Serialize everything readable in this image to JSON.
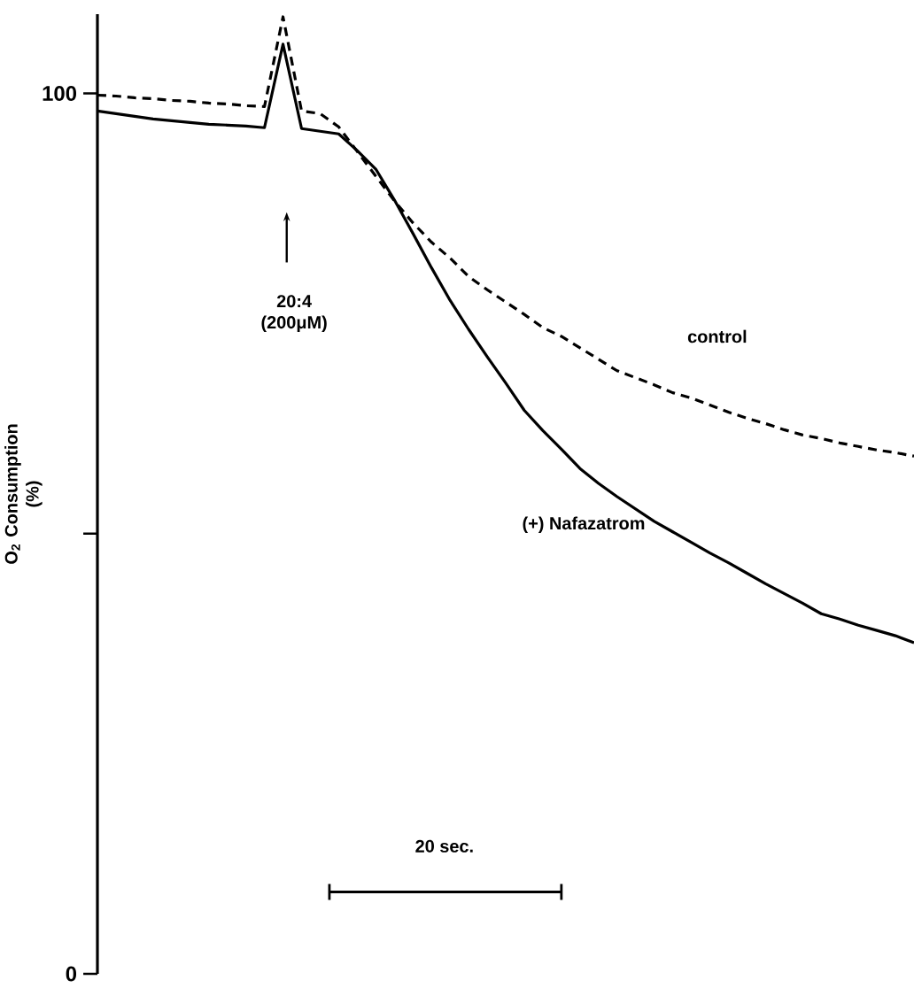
{
  "chart_data": {
    "type": "line",
    "ylabel": "O$_{2}$ Consumption (%)",
    "categories": [
      null,
      null,
      null,
      null,
      null,
      null,
      null,
      null,
      null,
      null,
      null,
      null,
      null,
      null,
      null,
      null,
      null,
      null,
      null,
      null,
      null,
      null,
      null,
      null,
      null,
      null,
      null,
      null,
      null,
      null,
      null,
      null,
      null,
      null,
      null,
      null,
      null,
      null,
      null,
      null,
      null,
      null,
      null,
      null,
      null
    ],
    "series": [
      {
        "name": "control",
        "color": "#000000",
        "line_style": "dashed",
        "values": [
          99.8,
          99.7,
          99.5,
          99.4,
          99.2,
          99.1,
          98.9,
          98.8,
          98.6,
          98.5,
          108.7,
          98.0,
          97.7,
          96.2,
          93.4,
          90.6,
          87.8,
          85.3,
          83.1,
          81.3,
          79.2,
          77.7,
          76.3,
          74.9,
          73.4,
          72.4,
          71.1,
          69.8,
          68.5,
          67.7,
          66.9,
          66.0,
          65.4,
          64.6,
          63.8,
          63.1,
          62.5,
          61.8,
          61.2,
          60.8,
          60.3,
          59.9,
          59.5,
          59.2,
          58.8
        ]
      },
      {
        "name": "(+) Nafazatrom",
        "color": "#000000",
        "line_style": "solid",
        "values": [
          98.0,
          97.7,
          97.4,
          97.1,
          96.9,
          96.7,
          96.5,
          96.4,
          96.3,
          96.1,
          105.6,
          96.0,
          95.7,
          95.4,
          93.5,
          91.4,
          87.9,
          84.1,
          80.2,
          76.5,
          73.2,
          70.1,
          67.1,
          64.0,
          61.7,
          59.6,
          57.4,
          55.7,
          54.2,
          52.8,
          51.4,
          50.2,
          49.0,
          47.8,
          46.7,
          45.5,
          44.3,
          43.2,
          42.1,
          40.9,
          40.3,
          39.6,
          39.0,
          38.4,
          37.6
        ]
      }
    ],
    "ylim": [
      0,
      109
    ],
    "yticks": [
      0,
      {
        "value": 50,
        "label": null
      },
      100
    ],
    "tick_labels": "y",
    "grid": false,
    "legend": false,
    "annotations": [
      "20:4 (200μM)",
      "20 sec."
    ]
  }
}
